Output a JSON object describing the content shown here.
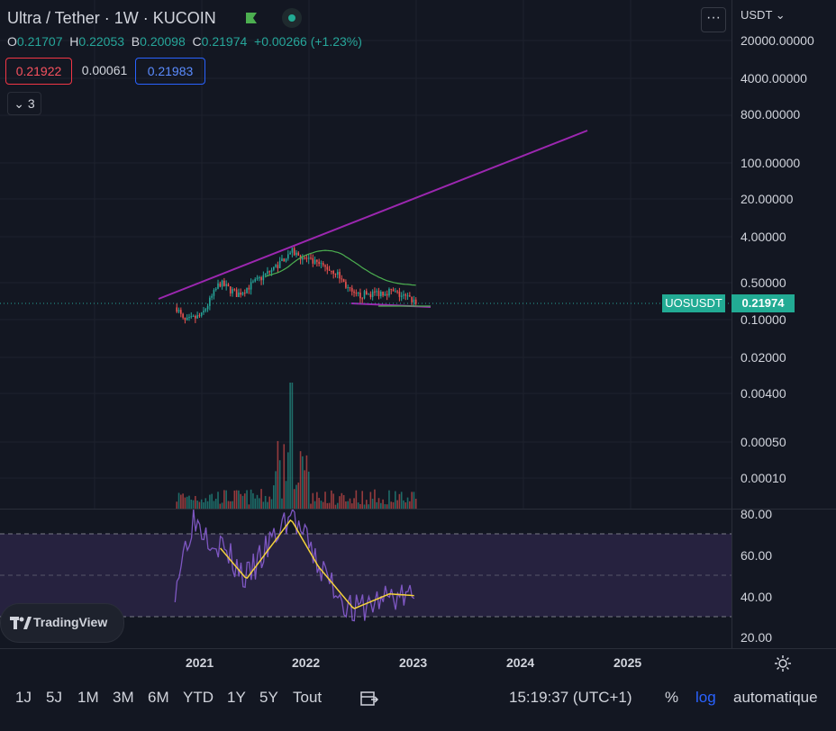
{
  "header": {
    "symbol_title": "Ultra / Tether · 1W · KUCOIN",
    "ohlc": [
      {
        "k": "O",
        "v": "0.21707"
      },
      {
        "k": "H",
        "v": "0.22053"
      },
      {
        "k": "B",
        "v": "0.20098"
      },
      {
        "k": "C",
        "v": "0.21974"
      }
    ],
    "change": "+0.00266 (+1.23%)",
    "bid": "0.21922",
    "spread": "0.00061",
    "ask": "0.21983",
    "indicators_count": "3",
    "currency": "USDT",
    "more": "···"
  },
  "price_axis": {
    "labels": [
      "20000.00000",
      "4000.00000",
      "800.00000",
      "100.00000",
      "20.00000",
      "4.00000",
      "0.50000",
      "0.10000",
      "0.02000",
      "0.00400",
      "0.00050",
      "0.00010"
    ],
    "symbol_tag": "UOSUSDT",
    "last_price": "0.21974"
  },
  "rsi_axis": {
    "labels": [
      "80.00",
      "60.00",
      "40.00",
      "20.00"
    ]
  },
  "time_axis": {
    "labels": [
      "2021",
      "2022",
      "2023",
      "2024",
      "2025"
    ]
  },
  "bottom_bar": {
    "ranges": [
      "1J",
      "5J",
      "1M",
      "3M",
      "6M",
      "YTD",
      "1Y",
      "5Y",
      "Tout"
    ],
    "clock": "15:19:37 (UTC+1)",
    "percent": "%",
    "log": "log",
    "auto": "automatique"
  },
  "branding": {
    "logo_text": "TradingView"
  },
  "colors": {
    "background": "#131722",
    "up": "#26a69a",
    "down": "#ef5350",
    "trendline": "#9c27b0",
    "ma": "#4caf50",
    "rsi": "#7e57c2",
    "rsi_ma": "#f5d33b",
    "log_active": "#2962ff"
  },
  "chart_data": {
    "type": "candlestick",
    "scale": "log",
    "price_approx": [
      {
        "date": "2020-10",
        "price": 0.2
      },
      {
        "date": "2020-11",
        "price": 0.09
      },
      {
        "date": "2021-01",
        "price": 0.12
      },
      {
        "date": "2021-03",
        "price": 0.5
      },
      {
        "date": "2021-05",
        "price": 0.3
      },
      {
        "date": "2021-09",
        "price": 0.9
      },
      {
        "date": "2021-11",
        "price": 2.0
      },
      {
        "date": "2022-01",
        "price": 1.3
      },
      {
        "date": "2022-04",
        "price": 0.8
      },
      {
        "date": "2022-06",
        "price": 0.28
      },
      {
        "date": "2022-10",
        "price": 0.35
      },
      {
        "date": "2023-01",
        "price": 0.22
      }
    ],
    "rsi_approx": [
      {
        "date": "2020-10",
        "rsi": 45
      },
      {
        "date": "2020-12",
        "rsi": 78
      },
      {
        "date": "2021-03",
        "rsi": 65
      },
      {
        "date": "2021-06",
        "rsi": 48
      },
      {
        "date": "2021-11",
        "rsi": 80
      },
      {
        "date": "2022-02",
        "rsi": 55
      },
      {
        "date": "2022-06",
        "rsi": 32
      },
      {
        "date": "2022-10",
        "rsi": 40
      },
      {
        "date": "2023-01",
        "rsi": 39
      }
    ],
    "rsi_band": [
      30,
      70
    ],
    "rsi_ylim": [
      20,
      80
    ]
  }
}
